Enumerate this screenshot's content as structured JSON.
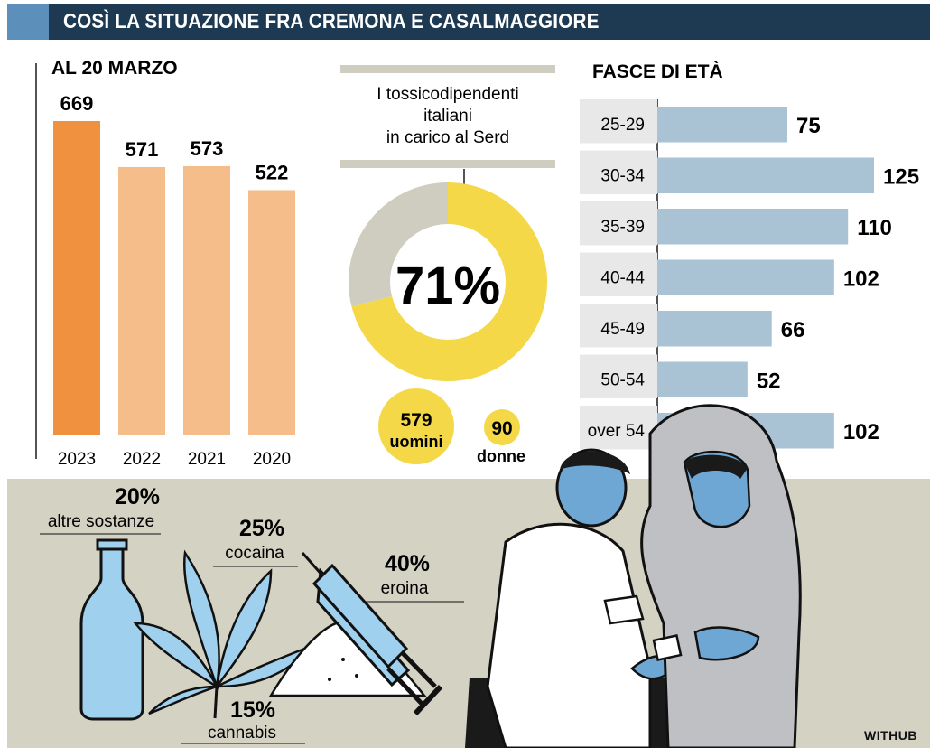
{
  "header": {
    "title": "COSÌ LA SITUAZIONE FRA CREMONA E CASALMAGGIORE"
  },
  "colors": {
    "banner": "#1e3a52",
    "banner_accent": "#5d8fbb",
    "bar_highlight": "#f0913f",
    "bar_default": "#f5bd8a",
    "donut_main": "#f5d848",
    "donut_rest": "#cfcdbf",
    "age_bar": "#a9c3d5",
    "band": "#d3d2c3"
  },
  "chart_data": [
    {
      "type": "bar",
      "title": "AL 20 MARZO",
      "categories": [
        "2023",
        "2022",
        "2021",
        "2020"
      ],
      "values": [
        669,
        571,
        573,
        522
      ],
      "ylim": [
        0,
        700
      ],
      "grid": false
    },
    {
      "type": "pie",
      "title": "I tossicodipendenti italiani in carico al Serd",
      "title_lines": [
        "I tossicodipendenti",
        "italiani",
        "in carico al Serd"
      ],
      "center_label": "71%",
      "value_percent": 71,
      "slices": [
        {
          "value": 579,
          "label": "uomini"
        },
        {
          "value": 90,
          "label": "donne"
        }
      ]
    },
    {
      "type": "bar",
      "orientation": "horizontal",
      "title": "FASCE DI ETÀ",
      "categories": [
        "25-29",
        "30-34",
        "35-39",
        "40-44",
        "45-49",
        "50-54",
        "over 54"
      ],
      "values": [
        75,
        125,
        110,
        102,
        66,
        52,
        102
      ],
      "xlim": [
        0,
        125
      ]
    },
    {
      "type": "annotation",
      "items": [
        {
          "percent": "20%",
          "label": "altre sostanze"
        },
        {
          "percent": "25%",
          "label": "cocaina"
        },
        {
          "percent": "40%",
          "label": "eroina"
        },
        {
          "percent": "15%",
          "label": "cannabis"
        }
      ]
    }
  ],
  "footer": {
    "credit": "WITHUB"
  }
}
